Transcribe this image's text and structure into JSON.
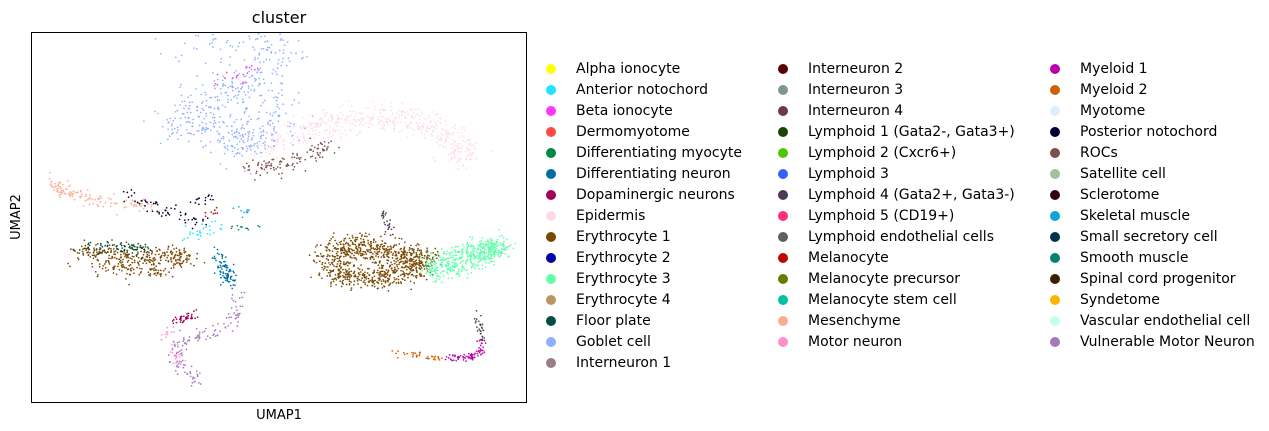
{
  "chart_data": {
    "type": "scatter",
    "title": "cluster",
    "xlabel": "UMAP1",
    "ylabel": "UMAP2",
    "xlim": [
      0,
      100
    ],
    "ylim": [
      0,
      100
    ],
    "ticks": false,
    "legend_position": "right",
    "legend": [
      {
        "label": "Alpha ionocyte",
        "color": "#ffff00"
      },
      {
        "label": "Anterior notochord",
        "color": "#1ce6ff"
      },
      {
        "label": "Beta ionocyte",
        "color": "#ff34ff"
      },
      {
        "label": "Dermomyotome",
        "color": "#ff4a46"
      },
      {
        "label": "Differentiating myocyte",
        "color": "#008941"
      },
      {
        "label": "Differentiating neuron",
        "color": "#006fa6"
      },
      {
        "label": "Dopaminergic neurons",
        "color": "#a30059"
      },
      {
        "label": "Epidermis",
        "color": "#ffdbe5"
      },
      {
        "label": "Erythrocyte 1",
        "color": "#7a4900"
      },
      {
        "label": "Erythrocyte 2",
        "color": "#0000a6"
      },
      {
        "label": "Erythrocyte 3",
        "color": "#63ffac"
      },
      {
        "label": "Erythrocyte 4",
        "color": "#b79762"
      },
      {
        "label": "Floor plate",
        "color": "#004d43"
      },
      {
        "label": "Goblet cell",
        "color": "#8fb0ff"
      },
      {
        "label": "Interneuron 1",
        "color": "#997d87"
      },
      {
        "label": "Interneuron 2",
        "color": "#5a0007"
      },
      {
        "label": "Interneuron 3",
        "color": "#809693"
      },
      {
        "label": "Interneuron 4",
        "color": "#6a3a4c"
      },
      {
        "label": "Lymphoid 1 (Gata2-, Gata3+)",
        "color": "#1b4400"
      },
      {
        "label": "Lymphoid 2 (Cxcr6+)",
        "color": "#4fc601"
      },
      {
        "label": "Lymphoid 3",
        "color": "#3b5dff"
      },
      {
        "label": "Lymphoid 4 (Gata2+, Gata3-)",
        "color": "#4a3b53"
      },
      {
        "label": "Lymphoid 5 (CD19+)",
        "color": "#ff2f80"
      },
      {
        "label": "Lymphoid endothelial cells",
        "color": "#61615a"
      },
      {
        "label": "Melanocyte",
        "color": "#ba0900"
      },
      {
        "label": "Melanocyte precursor",
        "color": "#6b7900"
      },
      {
        "label": "Melanocyte stem cell",
        "color": "#00c2a0"
      },
      {
        "label": "Mesenchyme",
        "color": "#ffaa92"
      },
      {
        "label": "Motor neuron",
        "color": "#ff90c9"
      },
      {
        "label": "Myeloid 1",
        "color": "#b903aa"
      },
      {
        "label": "Myeloid 2",
        "color": "#d16100"
      },
      {
        "label": "Myotome",
        "color": "#ddefff"
      },
      {
        "label": "Posterior notochord",
        "color": "#000035"
      },
      {
        "label": "ROCs",
        "color": "#7b4f4b"
      },
      {
        "label": "Satellite cell",
        "color": "#a1c299"
      },
      {
        "label": "Sclerotome",
        "color": "#300018"
      },
      {
        "label": "Skeletal muscle",
        "color": "#0aa6d8"
      },
      {
        "label": "Small secretory cell",
        "color": "#013349"
      },
      {
        "label": "Smooth muscle",
        "color": "#00846f"
      },
      {
        "label": "Spinal cord progenitor",
        "color": "#372101"
      },
      {
        "label": "Syndetome",
        "color": "#ffb500"
      },
      {
        "label": "Vascular endothelial cell",
        "color": "#c2ffed"
      },
      {
        "label": "Vulnerable Motor Neuron",
        "color": "#a079bf"
      }
    ],
    "clusters": [
      {
        "color": "#8fb0ff",
        "n": 520,
        "pts": [
          [
            30,
            95
          ],
          [
            45,
            95
          ],
          [
            51,
            94
          ],
          [
            45,
            88
          ],
          [
            40,
            83
          ],
          [
            32,
            80
          ],
          [
            36,
            78
          ],
          [
            29,
            76
          ],
          [
            36,
            73
          ],
          [
            45,
            72
          ],
          [
            42,
            70
          ],
          [
            50,
            74
          ],
          [
            49,
            81
          ],
          [
            40,
            88
          ]
        ],
        "spread": 3.0
      },
      {
        "color": "#ff34ff",
        "n": 18,
        "pts": [
          [
            37,
            86
          ],
          [
            42,
            88
          ],
          [
            45,
            90
          ],
          [
            47,
            91
          ]
        ],
        "spread": 0.9
      },
      {
        "color": "#ffdbe5",
        "n": 520,
        "pts": [
          [
            46,
            68
          ],
          [
            52,
            72
          ],
          [
            58,
            74
          ],
          [
            65,
            75
          ],
          [
            72,
            77
          ],
          [
            77,
            75
          ],
          [
            82,
            73
          ],
          [
            86,
            68
          ],
          [
            88,
            66
          ],
          [
            85,
            71
          ],
          [
            80,
            76
          ],
          [
            74,
            78
          ],
          [
            67,
            77
          ],
          [
            60,
            76
          ],
          [
            54,
            73
          ]
        ],
        "spread": 1.8
      },
      {
        "color": "#7b4f4b",
        "n": 110,
        "pts": [
          [
            43,
            63
          ],
          [
            48,
            64
          ],
          [
            53,
            65
          ],
          [
            58,
            68
          ],
          [
            60,
            70
          ]
        ],
        "spread": 1.2
      },
      {
        "color": "#ffaa92",
        "n": 130,
        "pts": [
          [
            4,
            60
          ],
          [
            7,
            57
          ],
          [
            12,
            55
          ],
          [
            18,
            54
          ],
          [
            24,
            53
          ]
        ],
        "spread": 1.0
      },
      {
        "color": "#000035",
        "n": 60,
        "pts": [
          [
            19,
            56
          ],
          [
            23,
            54
          ],
          [
            27,
            52
          ],
          [
            31,
            50
          ],
          [
            35,
            49
          ]
        ],
        "spread": 0.8
      },
      {
        "color": "#ba0900",
        "n": 8,
        "pts": [
          [
            36,
            51
          ],
          [
            37,
            52
          ]
        ],
        "spread": 0.8
      },
      {
        "color": "#008941",
        "n": 12,
        "pts": [
          [
            40,
            48
          ],
          [
            43,
            47
          ],
          [
            46,
            47
          ]
        ],
        "spread": 0.8
      },
      {
        "color": "#0aa6d8",
        "n": 10,
        "pts": [
          [
            42,
            52
          ],
          [
            44,
            51
          ]
        ],
        "spread": 0.7
      },
      {
        "color": "#000035",
        "n": 14,
        "pts": [
          [
            33,
            54
          ],
          [
            35,
            56
          ],
          [
            36,
            53
          ]
        ],
        "spread": 0.6
      },
      {
        "color": "#1ce6ff",
        "n": 28,
        "pts": [
          [
            31,
            44
          ],
          [
            35,
            46
          ],
          [
            38,
            49
          ]
        ],
        "spread": 0.8
      },
      {
        "color": "#7a4900",
        "n": 380,
        "pts": [
          [
            9,
            40
          ],
          [
            14,
            41
          ],
          [
            19,
            40
          ],
          [
            24,
            39
          ],
          [
            29,
            40
          ],
          [
            31,
            38
          ],
          [
            25,
            36
          ],
          [
            19,
            36
          ],
          [
            14,
            37
          ]
        ],
        "spread": 1.4
      },
      {
        "color": "#004d43",
        "n": 70,
        "pts": [
          [
            11,
            42
          ],
          [
            15,
            42
          ],
          [
            20,
            42
          ],
          [
            23,
            41
          ]
        ],
        "spread": 0.9
      },
      {
        "color": "#006fa6",
        "n": 90,
        "pts": [
          [
            37,
            41
          ],
          [
            39,
            36
          ],
          [
            40,
            32
          ],
          [
            38,
            38
          ]
        ],
        "spread": 0.9
      },
      {
        "color": "#a079bf",
        "n": 130,
        "pts": [
          [
            41,
            29
          ],
          [
            42,
            25
          ],
          [
            40,
            21
          ],
          [
            37,
            19
          ],
          [
            32,
            17
          ],
          [
            30,
            16
          ],
          [
            29,
            12
          ],
          [
            31,
            8
          ],
          [
            34,
            5
          ]
        ],
        "spread": 0.9
      },
      {
        "color": "#a30059",
        "n": 40,
        "pts": [
          [
            29,
            22
          ],
          [
            31,
            22
          ],
          [
            33,
            24
          ]
        ],
        "spread": 0.7
      },
      {
        "color": "#ff90c9",
        "n": 35,
        "pts": [
          [
            26,
            17
          ],
          [
            28,
            19
          ],
          [
            29,
            13
          ],
          [
            30,
            10
          ]
        ],
        "spread": 0.6
      },
      {
        "color": "#7a4900",
        "n": 900,
        "pts": [
          [
            60,
            40
          ],
          [
            65,
            42
          ],
          [
            70,
            41
          ],
          [
            75,
            40
          ],
          [
            80,
            38
          ],
          [
            75,
            35
          ],
          [
            70,
            34
          ],
          [
            64,
            34
          ],
          [
            60,
            37
          ]
        ],
        "spread": 1.8
      },
      {
        "color": "#63ffac",
        "n": 500,
        "pts": [
          [
            80,
            37
          ],
          [
            85,
            39
          ],
          [
            89,
            41
          ],
          [
            93,
            42
          ],
          [
            95,
            42
          ],
          [
            91,
            39
          ],
          [
            86,
            36
          ],
          [
            81,
            35
          ]
        ],
        "spread": 1.3
      },
      {
        "color": "#4a3b53",
        "n": 25,
        "pts": [
          [
            71,
            52
          ],
          [
            72,
            48
          ],
          [
            73,
            45
          ]
        ],
        "spread": 0.5
      },
      {
        "color": "#4a3b53",
        "n": 30,
        "pts": [
          [
            90,
            24
          ],
          [
            91,
            20
          ],
          [
            91,
            16
          ]
        ],
        "spread": 0.5
      },
      {
        "color": "#b903aa",
        "n": 80,
        "pts": [
          [
            84,
            12
          ],
          [
            87,
            12
          ],
          [
            89,
            12
          ],
          [
            91,
            14
          ],
          [
            91,
            17
          ]
        ],
        "spread": 0.5
      },
      {
        "color": "#d16100",
        "n": 35,
        "pts": [
          [
            73,
            13
          ],
          [
            77,
            13
          ],
          [
            81,
            12
          ],
          [
            84,
            12
          ]
        ],
        "spread": 0.4
      }
    ]
  }
}
